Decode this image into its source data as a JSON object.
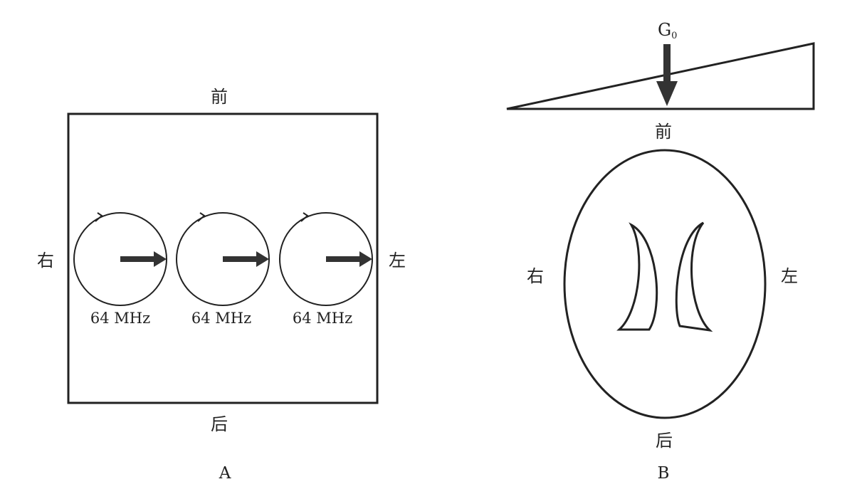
{
  "panel_a": {
    "label": "A",
    "top": "前",
    "bottom": "后",
    "left": "右",
    "right": "左",
    "spins": [
      {
        "freq": "64 MHz"
      },
      {
        "freq": "64 MHz"
      },
      {
        "freq": "64 MHz"
      }
    ]
  },
  "panel_b": {
    "label": "B",
    "gradient_label": "G",
    "gradient_subscript": "0",
    "top": "前",
    "bottom": "后",
    "left": "右",
    "right": "左"
  }
}
